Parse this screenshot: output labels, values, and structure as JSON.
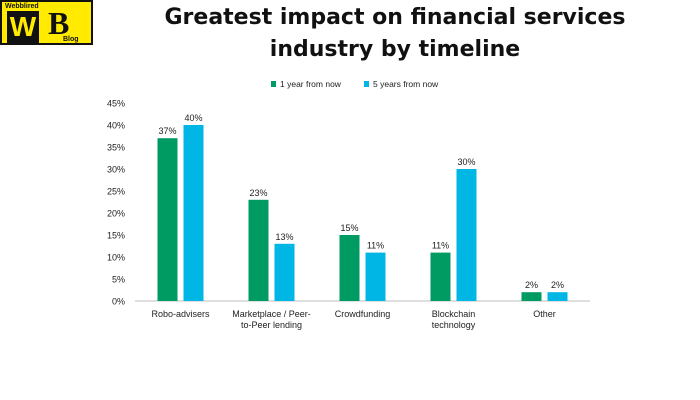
{
  "logo": {
    "top_text": "Webblired",
    "letter_w": "W",
    "letter_b": "B",
    "blog_text": "Blog"
  },
  "header": {
    "title_line1": "Greatest impact on financial services",
    "title_line2": "industry by timeline"
  },
  "colors": {
    "series1": "#009a63",
    "series2": "#00b6e4",
    "axis_text": "#222222",
    "axis_line": "#bfbfbf"
  },
  "chart_data": {
    "type": "bar",
    "categories": [
      [
        "Robo-advisers"
      ],
      [
        "Marketplace / Peer-",
        "to-Peer lending"
      ],
      [
        "Crowdfunding"
      ],
      [
        "Blockchain",
        "technology"
      ],
      [
        "Other"
      ]
    ],
    "series": [
      {
        "name": "1 year from now",
        "values": [
          37,
          23,
          15,
          11,
          2
        ],
        "labels": [
          "37%",
          "23%",
          "15%",
          "11%",
          "2%"
        ]
      },
      {
        "name": "5 years from now",
        "values": [
          40,
          13,
          11,
          30,
          2
        ],
        "labels": [
          "40%",
          "13%",
          "11%",
          "30%",
          "2%"
        ]
      }
    ],
    "ylim": [
      0,
      45
    ],
    "yticks": [
      "0%",
      "5%",
      "10%",
      "15%",
      "20%",
      "25%",
      "30%",
      "35%",
      "40%",
      "45%"
    ],
    "ytick_values": [
      0,
      5,
      10,
      15,
      20,
      25,
      30,
      35,
      40,
      45
    ],
    "legend_position": "top-right",
    "grid": false
  }
}
